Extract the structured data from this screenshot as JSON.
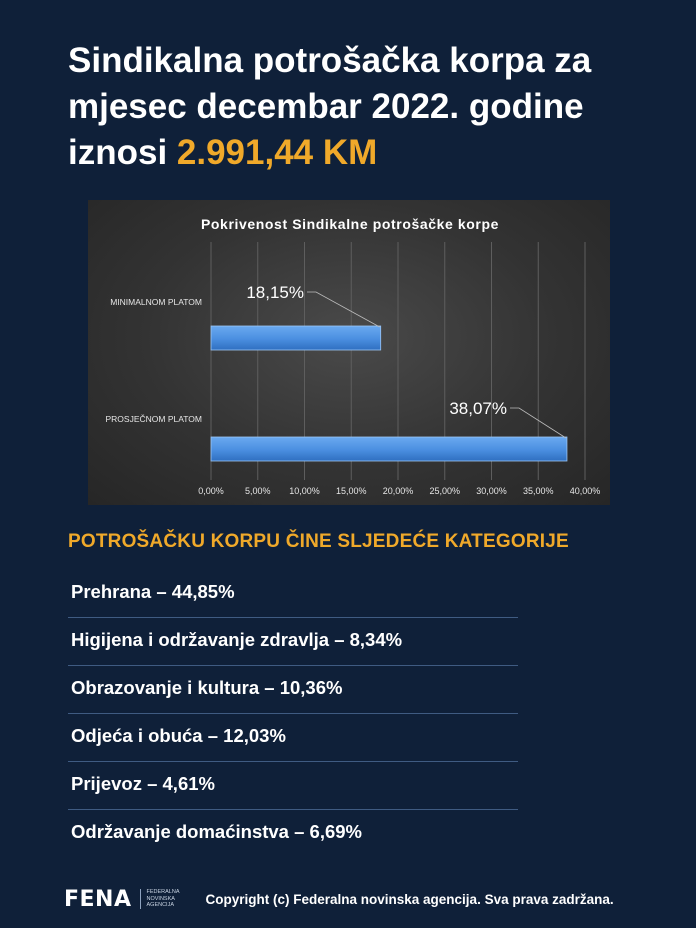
{
  "headline": {
    "line1": "Sindikalna potrošačka korpa za",
    "line2": "mjesec decembar 2022. godine",
    "line3_prefix": "iznosi ",
    "amount": "2.991,44 KM"
  },
  "chart_data": {
    "type": "bar",
    "orientation": "horizontal",
    "title": "Pokrivenost  Sindikalne  potrošačke  korpe",
    "categories": [
      "MINIMALNOM PLATOM",
      "PROSJEČNOM PLATOM"
    ],
    "values": [
      18.15,
      38.07
    ],
    "data_labels": [
      "18,15%",
      "38,07%"
    ],
    "xlim": [
      0,
      40
    ],
    "x_ticks": [
      "0,00%",
      "5,00%",
      "10,00%",
      "15,00%",
      "20,00%",
      "25,00%",
      "30,00%",
      "35,00%",
      "40,00%"
    ],
    "x_tick_values": [
      0,
      5,
      10,
      15,
      20,
      25,
      30,
      35,
      40
    ],
    "grid": true,
    "legend": "none",
    "bar_color": "#4a8ee0",
    "background_color": "#3a3a3a"
  },
  "categories_section": {
    "title": "POTROŠAČKU KORPU ČINE SLJEDEĆE KATEGORIJE",
    "items": [
      "Prehrana – 44,85%",
      "Higijena i održavanje zdravlja – 8,34%",
      "Obrazovanje i kultura – 10,36%",
      "Odjeća i obuća – 12,03%",
      "Prijevoz – 4,61%",
      "Održavanje domaćinstva – 6,69%"
    ]
  },
  "footer": {
    "logo_text": "FENA",
    "logo_subtext": "FEDERALNA NOVINSKA AGENCIJA",
    "copyright": "Copyright (c) Federalna novinska agencija. Sva prava zadržana."
  },
  "colors": {
    "background": "#0f2039",
    "accent": "#f0a92a",
    "divider": "#3f5b82"
  }
}
